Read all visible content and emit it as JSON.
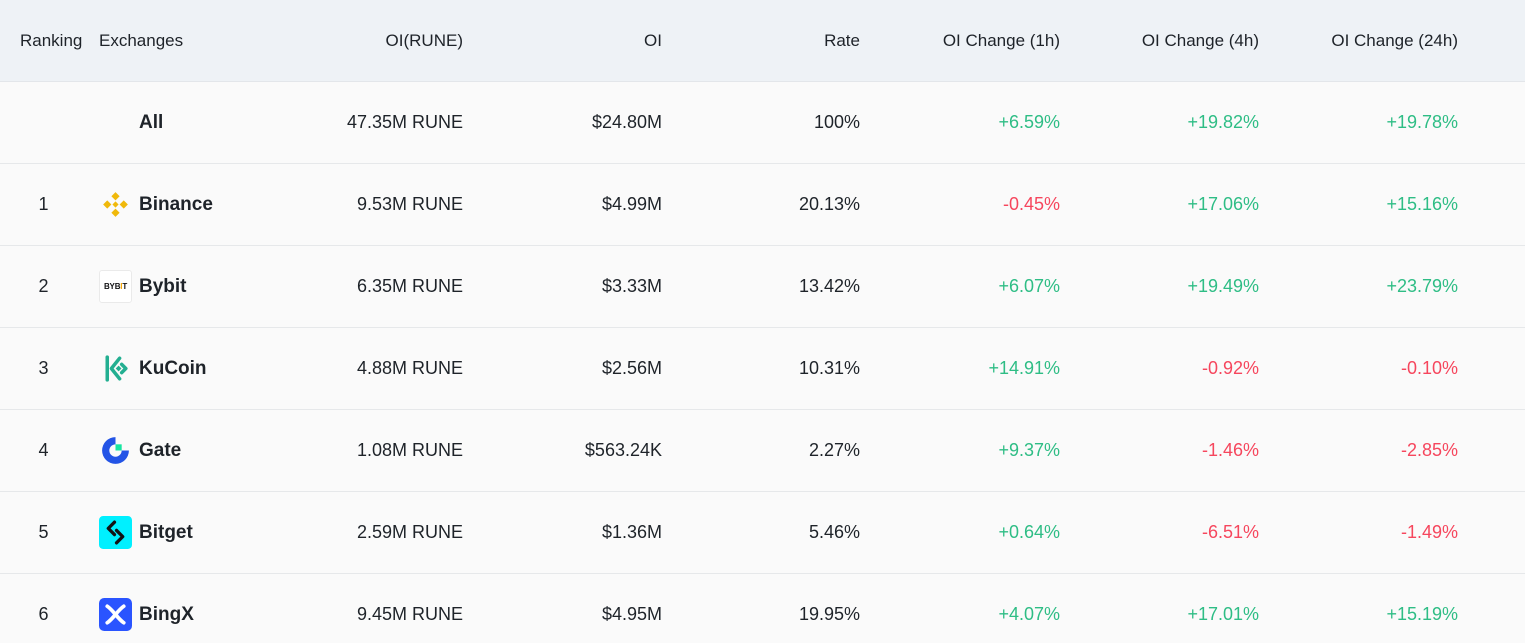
{
  "header": {
    "ranking": "Ranking",
    "exchanges": "Exchanges",
    "oi_rune": "OI(RUNE)",
    "oi": "OI",
    "rate": "Rate",
    "oi_change_1h": "OI Change (1h)",
    "oi_change_4h": "OI Change (4h)",
    "oi_change_24h": "OI Change (24h)"
  },
  "rows": [
    {
      "rank": "",
      "exchange": "All",
      "icon": "",
      "oi_rune": "47.35M RUNE",
      "oi": "$24.80M",
      "rate": "100%",
      "ch1h": "+6.59%",
      "ch4h": "+19.82%",
      "ch24h": "+19.78%"
    },
    {
      "rank": "1",
      "exchange": "Binance",
      "icon": "binance-logo-icon",
      "oi_rune": "9.53M RUNE",
      "oi": "$4.99M",
      "rate": "20.13%",
      "ch1h": "-0.45%",
      "ch4h": "+17.06%",
      "ch24h": "+15.16%"
    },
    {
      "rank": "2",
      "exchange": "Bybit",
      "icon": "bybit-logo-icon",
      "logo_text_a": "BYB",
      "logo_text_b": "I",
      "logo_text_c": "T",
      "oi_rune": "6.35M RUNE",
      "oi": "$3.33M",
      "rate": "13.42%",
      "ch1h": "+6.07%",
      "ch4h": "+19.49%",
      "ch24h": "+23.79%"
    },
    {
      "rank": "3",
      "exchange": "KuCoin",
      "icon": "kucoin-logo-icon",
      "oi_rune": "4.88M RUNE",
      "oi": "$2.56M",
      "rate": "10.31%",
      "ch1h": "+14.91%",
      "ch4h": "-0.92%",
      "ch24h": "-0.10%"
    },
    {
      "rank": "4",
      "exchange": "Gate",
      "icon": "gate-logo-icon",
      "oi_rune": "1.08M RUNE",
      "oi": "$563.24K",
      "rate": "2.27%",
      "ch1h": "+9.37%",
      "ch4h": "-1.46%",
      "ch24h": "-2.85%"
    },
    {
      "rank": "5",
      "exchange": "Bitget",
      "icon": "bitget-logo-icon",
      "oi_rune": "2.59M RUNE",
      "oi": "$1.36M",
      "rate": "5.46%",
      "ch1h": "+0.64%",
      "ch4h": "-6.51%",
      "ch24h": "-1.49%"
    },
    {
      "rank": "6",
      "exchange": "BingX",
      "icon": "bingx-logo-icon",
      "oi_rune": "9.45M RUNE",
      "oi": "$4.95M",
      "rate": "19.95%",
      "ch1h": "+4.07%",
      "ch4h": "+17.01%",
      "ch24h": "+15.19%"
    }
  ],
  "colors": {
    "positive": "#2ebd85",
    "negative": "#f6465d",
    "header_bg": "#eef2f6",
    "binance": "#f0b90b",
    "kucoin": "#23af91",
    "gate": "#2354e6",
    "bitget": "#00f0ff",
    "bingx": "#2a54ff"
  }
}
